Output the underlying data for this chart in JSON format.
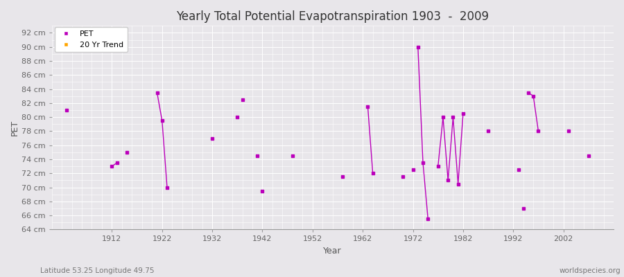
{
  "title": "Yearly Total Potential Evapotranspiration 1903  -  2009",
  "xlabel": "Year",
  "ylabel": "PET",
  "subtitle_left": "Latitude 53.25 Longitude 49.75",
  "subtitle_right": "worldspecies.org",
  "ylim": [
    64,
    93
  ],
  "ytick_min": 64,
  "ytick_max": 92,
  "ytick_step": 2,
  "xlim": [
    1900,
    2012
  ],
  "pet_color": "#bb00bb",
  "trend_color": "#FFA500",
  "bg_color": "#e8e6ea",
  "grid_color": "#ffffff",
  "pet_data": [
    [
      1903,
      81.0
    ],
    [
      1912,
      73.0
    ],
    [
      1913,
      73.5
    ],
    [
      1915,
      75.0
    ],
    [
      1921,
      83.5
    ],
    [
      1922,
      79.5
    ],
    [
      1923,
      70.0
    ],
    [
      1932,
      77.0
    ],
    [
      1937,
      80.0
    ],
    [
      1938,
      82.5
    ],
    [
      1941,
      74.5
    ],
    [
      1942,
      69.5
    ],
    [
      1948,
      74.5
    ],
    [
      1958,
      71.5
    ],
    [
      1963,
      81.5
    ],
    [
      1964,
      72.0
    ],
    [
      1970,
      71.5
    ],
    [
      1972,
      72.5
    ],
    [
      1973,
      90.0
    ],
    [
      1974,
      73.5
    ],
    [
      1975,
      65.5
    ],
    [
      1977,
      73.0
    ],
    [
      1978,
      80.0
    ],
    [
      1979,
      71.0
    ],
    [
      1980,
      80.0
    ],
    [
      1981,
      70.5
    ],
    [
      1982,
      80.5
    ],
    [
      1987,
      78.0
    ],
    [
      1993,
      72.5
    ],
    [
      1994,
      67.0
    ],
    [
      1995,
      83.5
    ],
    [
      1996,
      83.0
    ],
    [
      1997,
      78.0
    ],
    [
      2003,
      78.0
    ],
    [
      2007,
      74.5
    ]
  ],
  "connected_segments": [
    [
      1912,
      1913
    ],
    [
      1921,
      1922,
      1923
    ],
    [
      1963,
      1964
    ],
    [
      1973,
      1974,
      1975
    ],
    [
      1977,
      1978,
      1979,
      1980,
      1981,
      1982
    ],
    [
      1995,
      1996,
      1997
    ]
  ]
}
